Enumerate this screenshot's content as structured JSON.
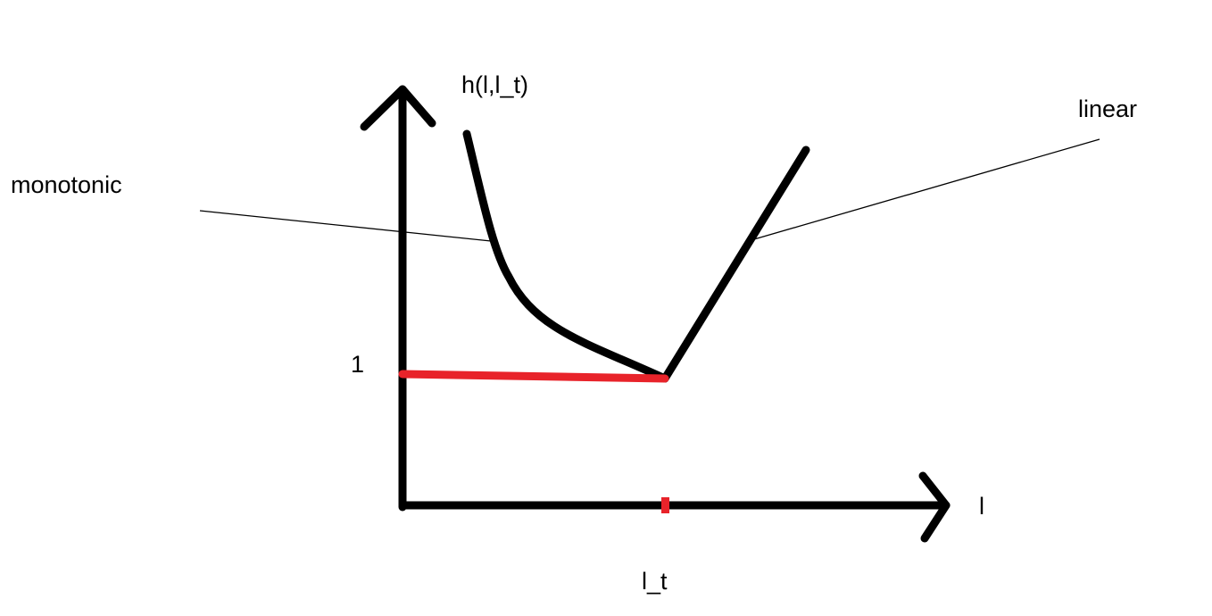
{
  "labels": {
    "y_axis": "h(l,l_t)",
    "x_axis": "l",
    "left_curve": "monotonic",
    "right_curve": "linear",
    "y_tick": "1",
    "x_tick": "l_t"
  },
  "colors": {
    "curve": "#000000",
    "baseline": "#e8232a",
    "marker": "#e8232a",
    "background": "#ffffff"
  }
}
